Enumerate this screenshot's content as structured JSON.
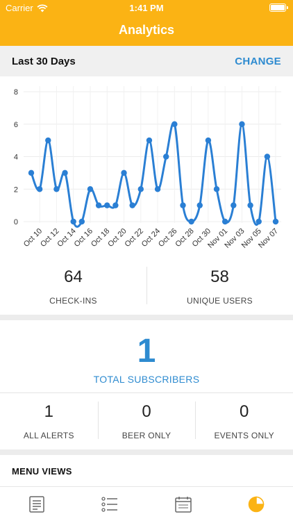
{
  "status_bar": {
    "carrier": "Carrier",
    "time": "1:41 PM"
  },
  "nav": {
    "title": "Analytics"
  },
  "range": {
    "label": "Last 30 Days",
    "change": "CHANGE"
  },
  "chart_data": {
    "type": "line",
    "x": [
      "Oct 09",
      "Oct 10",
      "Oct 11",
      "Oct 12",
      "Oct 13",
      "Oct 14",
      "Oct 15",
      "Oct 16",
      "Oct 17",
      "Oct 18",
      "Oct 19",
      "Oct 20",
      "Oct 21",
      "Oct 22",
      "Oct 23",
      "Oct 24",
      "Oct 25",
      "Oct 26",
      "Oct 27",
      "Oct 28",
      "Oct 29",
      "Oct 30",
      "Oct 31",
      "Nov 01",
      "Nov 02",
      "Nov 03",
      "Nov 04",
      "Nov 05",
      "Nov 06",
      "Nov 07"
    ],
    "tick_labels": [
      "Oct 10",
      "Oct 12",
      "Oct 14",
      "Oct 16",
      "Oct 18",
      "Oct 20",
      "Oct 22",
      "Oct 24",
      "Oct 26",
      "Oct 28",
      "Oct 30",
      "Nov 01",
      "Nov 03",
      "Nov 05",
      "Nov 07"
    ],
    "values": [
      3,
      2,
      5,
      2,
      3,
      0,
      0,
      2,
      1,
      1,
      1,
      3,
      1,
      2,
      5,
      2,
      4,
      6,
      1,
      0,
      1,
      5,
      2,
      0,
      1,
      6,
      1,
      0,
      4,
      0
    ],
    "y_ticks": [
      0,
      2,
      4,
      6,
      8
    ],
    "ylim": [
      0,
      8
    ],
    "grid": true,
    "color": "#2a7fd4"
  },
  "stats": {
    "checkins": {
      "value": "64",
      "label": "CHECK-INS"
    },
    "unique_users": {
      "value": "58",
      "label": "UNIQUE USERS"
    }
  },
  "subscribers": {
    "total": {
      "value": "1",
      "label": "TOTAL SUBSCRIBERS"
    },
    "all_alerts": {
      "value": "1",
      "label": "ALL ALERTS"
    },
    "beer_only": {
      "value": "0",
      "label": "BEER ONLY"
    },
    "events_only": {
      "value": "0",
      "label": "EVENTS ONLY"
    }
  },
  "menu_views": {
    "title": "MENU VIEWS"
  },
  "tabs": [
    {
      "icon": "document-list-icon"
    },
    {
      "icon": "checklist-icon"
    },
    {
      "icon": "calendar-icon"
    },
    {
      "icon": "pie-chart-icon",
      "active": true
    }
  ],
  "colors": {
    "accent": "#fbb314",
    "blue": "#2e8bd0",
    "inactive_icon": "#666666"
  }
}
